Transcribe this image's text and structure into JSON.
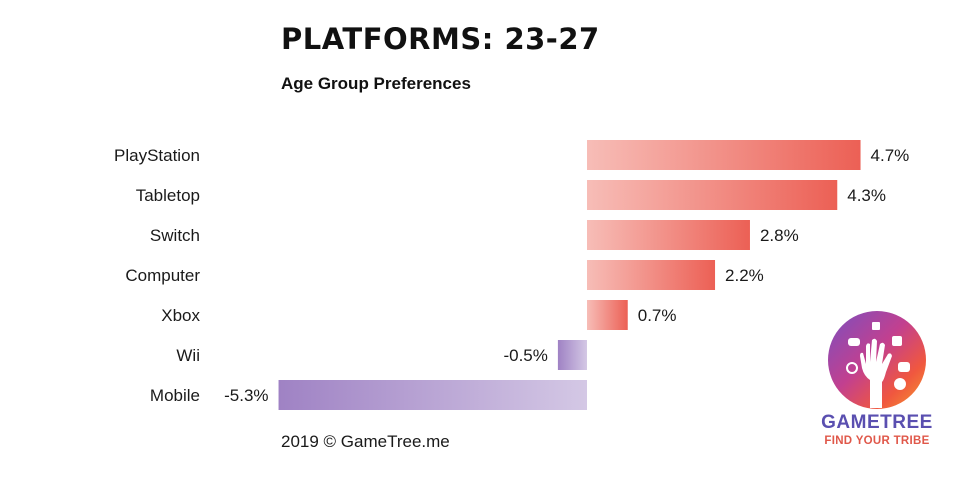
{
  "header": {
    "title": "PLATFORMS: 23-27",
    "subtitle": "Age Group Preferences"
  },
  "chart_data": {
    "type": "bar",
    "orientation": "horizontal",
    "title": "PLATFORMS: 23-27",
    "subtitle": "Age Group Preferences",
    "categories": [
      "PlayStation",
      "Tabletop",
      "Switch",
      "Computer",
      "Xbox",
      "Wii",
      "Mobile"
    ],
    "values": [
      4.7,
      4.3,
      2.8,
      2.2,
      0.7,
      -0.5,
      -5.3
    ],
    "value_labels": [
      "4.7%",
      "4.3%",
      "2.8%",
      "2.2%",
      "0.7%",
      "-0.5%",
      "-5.3%"
    ],
    "unit": "%",
    "xlim": [
      -5.3,
      4.7
    ],
    "grid": false,
    "colors": {
      "positive_dark": "#ec6055",
      "positive_light": "#f7bdb7",
      "negative_dark": "#9f82c4",
      "negative_light": "#d4c8e5"
    }
  },
  "footer": {
    "credit": "2019 © GameTree.me"
  },
  "logo": {
    "name": "GAMETREE",
    "tagline": "FIND YOUR TRIBE"
  }
}
